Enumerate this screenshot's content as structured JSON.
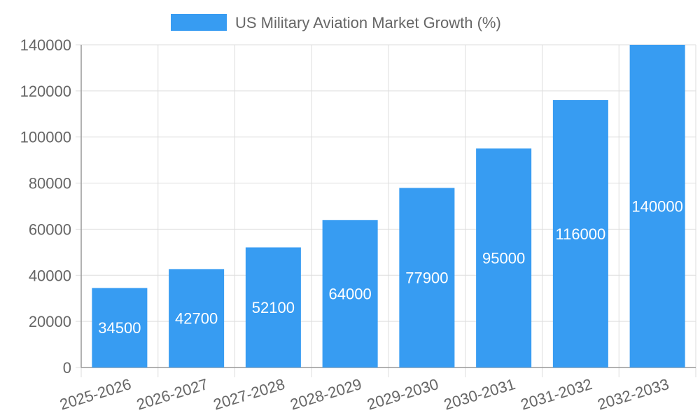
{
  "chart_data": {
    "type": "bar",
    "legend": {
      "label": "US Military Aviation Market Growth (%)",
      "position": "top-center"
    },
    "categories": [
      "2025-2026",
      "2026-2027",
      "2027-2028",
      "2028-2029",
      "2029-2030",
      "2030-2031",
      "2031-2032",
      "2032-2033"
    ],
    "series": [
      {
        "name": "US Military Aviation Market Growth (%)",
        "values": [
          34500,
          42700,
          52100,
          64000,
          77900,
          95000,
          116000,
          140000
        ],
        "color": "#379cf2"
      }
    ],
    "yticks": [
      "0",
      "20000",
      "40000",
      "60000",
      "80000",
      "100000",
      "120000",
      "140000"
    ],
    "ylim": [
      0,
      140000
    ],
    "grid": true
  }
}
